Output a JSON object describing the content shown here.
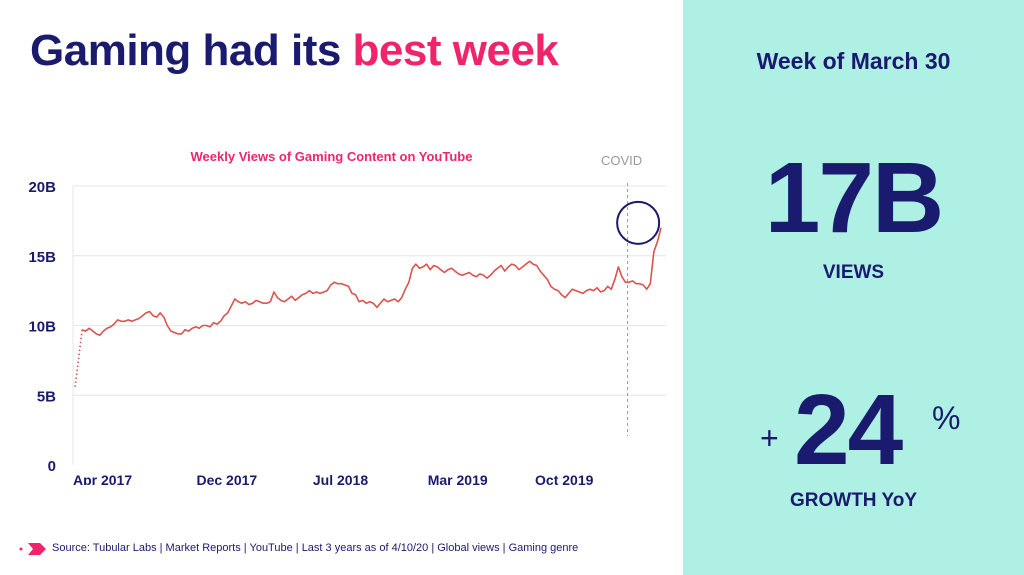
{
  "headline": {
    "part1": "Gaming had its ",
    "part2": "best week"
  },
  "stats": {
    "week": "Week of March 30",
    "views_value": "17B",
    "views_label": "VIEWS",
    "growth_plus": "+",
    "growth_value": "24",
    "growth_pct": "%",
    "growth_label": "GROWTH YoY"
  },
  "source": "Source: Tubular Labs | Market Reports | YouTube | Last 3 years as of 4/10/20 | Global views | Gaming genre",
  "colors": {
    "navy": "#1a1a6e",
    "pink": "#f0246b",
    "line": "#d9534f",
    "panel": "#aef0e3"
  },
  "chart_data": {
    "type": "line",
    "title": "Weekly Views of Gaming Content on YouTube",
    "xlabel": "",
    "ylabel": "",
    "ylim": [
      0,
      20
    ],
    "y_ticks": [
      0,
      5,
      10,
      15,
      20
    ],
    "y_tick_labels": [
      "0",
      "5B",
      "10B",
      "15B",
      "20B"
    ],
    "x_tick_positions": [
      1,
      36,
      68,
      101,
      131
    ],
    "x_tick_labels": [
      "Apr 2017",
      "Dec 2017",
      "Jul 2018",
      "Mar 2019",
      "Oct 2019"
    ],
    "annotation": {
      "label": "COVID",
      "x": 157
    },
    "highlight_index": 158,
    "dotted_until": 2,
    "grid": true,
    "series": [
      {
        "values": [
          5.6,
          7.6,
          9.7,
          9.6,
          9.8,
          9.6,
          9.4,
          9.3,
          9.6,
          9.8,
          9.9,
          10.1,
          10.4,
          10.3,
          10.3,
          10.4,
          10.3,
          10.4,
          10.5,
          10.7,
          10.9,
          11.0,
          10.7,
          10.6,
          10.9,
          10.6,
          10.0,
          9.6,
          9.5,
          9.4,
          9.4,
          9.7,
          9.6,
          9.8,
          9.9,
          9.8,
          10.0,
          10.0,
          9.9,
          10.2,
          10.1,
          10.3,
          10.7,
          10.9,
          11.4,
          11.9,
          11.7,
          11.6,
          11.7,
          11.5,
          11.6,
          11.8,
          11.7,
          11.6,
          11.6,
          11.7,
          12.4,
          12.0,
          11.8,
          11.7,
          11.9,
          12.1,
          11.8,
          12.0,
          12.2,
          12.3,
          12.5,
          12.3,
          12.4,
          12.3,
          12.4,
          12.5,
          12.9,
          13.1,
          13.0,
          13.0,
          12.9,
          12.8,
          12.3,
          12.2,
          11.7,
          11.8,
          11.6,
          11.7,
          11.6,
          11.3,
          11.6,
          11.9,
          11.7,
          11.8,
          11.9,
          11.7,
          12.0,
          12.6,
          13.1,
          14.1,
          14.4,
          14.1,
          14.2,
          14.4,
          14.0,
          14.3,
          14.2,
          14.0,
          13.8,
          14.0,
          14.1,
          13.9,
          13.7,
          13.6,
          13.7,
          13.8,
          13.6,
          13.5,
          13.7,
          13.6,
          13.4,
          13.6,
          13.9,
          14.1,
          14.3,
          13.9,
          14.2,
          14.4,
          14.3,
          14.0,
          14.2,
          14.4,
          14.6,
          14.4,
          14.3,
          13.9,
          13.6,
          13.3,
          12.8,
          12.6,
          12.5,
          12.2,
          12.0,
          12.3,
          12.6,
          12.5,
          12.4,
          12.3,
          12.5,
          12.6,
          12.5,
          12.7,
          12.4,
          12.5,
          12.8,
          12.6,
          13.3,
          14.2,
          13.5,
          13.1,
          13.1,
          13.2
        ],
        "tail_values": [
          13.0,
          13.0,
          12.9,
          12.6,
          13.0,
          15.3,
          16.0,
          17.0
        ]
      }
    ]
  }
}
